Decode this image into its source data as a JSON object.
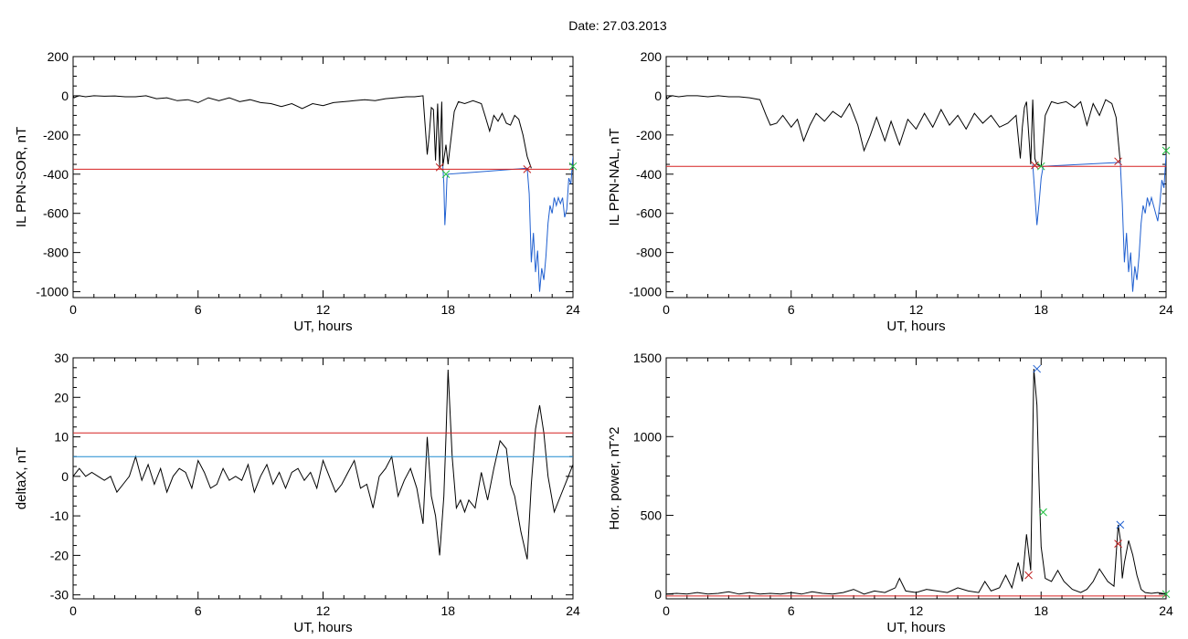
{
  "figure": {
    "title": "Date:  27.03.2013"
  },
  "chart_data": [
    {
      "id": "p1",
      "type": "line",
      "xlabel": "UT, hours",
      "ylabel": "IL PPN-SOR, nT",
      "xlim": [
        0,
        24
      ],
      "ylim": [
        -1030,
        200
      ],
      "xticks": [
        0,
        6,
        12,
        18,
        24
      ],
      "yticks": [
        200,
        0,
        -200,
        -400,
        -600,
        -800,
        -1000
      ],
      "grid": false,
      "series": [
        {
          "color": "#000000",
          "x": [
            0,
            0.05,
            0.15,
            0.3,
            0.6,
            1,
            1.5,
            2,
            2.5,
            3,
            3.5,
            4,
            4.5,
            5,
            5.5,
            6,
            6.5,
            7,
            7.5,
            8,
            8.5,
            9,
            9.5,
            10,
            10.5,
            11,
            11.5,
            12,
            12.5,
            13,
            13.5,
            14,
            14.5,
            15,
            15.5,
            16,
            16.4,
            16.8,
            16.9,
            17.0,
            17.1,
            17.2,
            17.3,
            17.4,
            17.5,
            17.6,
            17.7,
            17.75,
            17.9,
            18.0,
            18.1,
            18.3,
            18.5,
            18.8,
            19.2,
            19.6,
            19.8,
            20.0,
            20.2,
            20.4,
            20.6,
            20.8,
            21.0,
            21.2,
            21.4,
            21.6,
            21.8,
            22.0
          ],
          "y": [
            0,
            -10,
            -5,
            0,
            -5,
            0,
            -2,
            -1,
            -5,
            -5,
            0,
            -15,
            -10,
            -25,
            -20,
            -35,
            -10,
            -25,
            -10,
            -30,
            -20,
            -35,
            -40,
            -55,
            -40,
            -65,
            -40,
            -50,
            -35,
            -30,
            -25,
            -20,
            -25,
            -15,
            -10,
            -5,
            -5,
            0,
            -150,
            -300,
            -200,
            -60,
            -70,
            -330,
            -40,
            -360,
            -30,
            -360,
            -250,
            -350,
            -260,
            -80,
            -30,
            -40,
            -25,
            -40,
            -110,
            -180,
            -100,
            -130,
            -90,
            -140,
            -150,
            -100,
            -120,
            -200,
            -310,
            -370
          ]
        },
        {
          "color": "#1f5fd0",
          "x": [
            17.75,
            17.8,
            17.85,
            17.9,
            17.95,
            18.0,
            21.8,
            21.9,
            22.0,
            22.1,
            22.2,
            22.3,
            22.4,
            22.5,
            22.6,
            22.7,
            22.8,
            22.9,
            23.0,
            23.1,
            23.2,
            23.3,
            23.4,
            23.5,
            23.6,
            23.7,
            23.8,
            23.9,
            24.0
          ],
          "y": [
            -360,
            -450,
            -660,
            -560,
            -420,
            -400,
            -370,
            -500,
            -850,
            -700,
            -900,
            -790,
            -1000,
            -880,
            -940,
            -820,
            -650,
            -560,
            -600,
            -520,
            -560,
            -520,
            -550,
            -520,
            -620,
            -580,
            -420,
            -450,
            -310
          ]
        },
        {
          "color": "#d62020",
          "x": [
            0,
            24
          ],
          "y": [
            -375,
            -375
          ]
        }
      ],
      "markers": [
        {
          "x": [
            17.6,
            21.8
          ],
          "y": [
            -365,
            -375
          ],
          "color": "#c02020"
        },
        {
          "x": [
            17.9,
            24.0
          ],
          "y": [
            -400,
            -360
          ],
          "color": "#20c040"
        }
      ]
    },
    {
      "id": "p2",
      "type": "line",
      "xlabel": "UT, hours",
      "ylabel": "IL PPN-NAL, nT",
      "xlim": [
        0,
        24
      ],
      "ylim": [
        -1030,
        200
      ],
      "xticks": [
        0,
        6,
        12,
        18,
        24
      ],
      "yticks": [
        200,
        0,
        -200,
        -400,
        -600,
        -800,
        -1000
      ],
      "grid": false,
      "series": [
        {
          "color": "#000000",
          "x": [
            0,
            0.05,
            0.15,
            0.3,
            0.6,
            1,
            1.5,
            2,
            2.5,
            3,
            3.5,
            4,
            4.5,
            4.8,
            5.0,
            5.3,
            5.6,
            6.0,
            6.3,
            6.6,
            6.9,
            7.2,
            7.6,
            8.0,
            8.4,
            8.8,
            9.2,
            9.5,
            9.8,
            10.1,
            10.5,
            10.8,
            11.2,
            11.6,
            12.0,
            12.4,
            12.8,
            13.2,
            13.6,
            14.0,
            14.4,
            14.8,
            15.2,
            15.6,
            16.0,
            16.4,
            16.8,
            17.0,
            17.1,
            17.2,
            17.3,
            17.5,
            17.6,
            17.7,
            17.8,
            18.0,
            18.2,
            18.5,
            18.8,
            19.2,
            19.6,
            19.9,
            20.2,
            20.5,
            20.8,
            21.1,
            21.4,
            21.6,
            21.8
          ],
          "y": [
            0,
            -15,
            -5,
            0,
            -5,
            0,
            0,
            -5,
            0,
            -5,
            -5,
            -10,
            -20,
            -100,
            -150,
            -140,
            -100,
            -160,
            -120,
            -230,
            -150,
            -90,
            -130,
            -80,
            -110,
            -40,
            -150,
            -280,
            -200,
            -110,
            -230,
            -130,
            -250,
            -120,
            -170,
            -90,
            -160,
            -70,
            -150,
            -100,
            -170,
            -90,
            -140,
            -100,
            -160,
            -140,
            -100,
            -320,
            -160,
            -60,
            -30,
            -350,
            -20,
            -320,
            -350,
            -360,
            -100,
            -30,
            -40,
            -30,
            -60,
            -30,
            -150,
            -40,
            -100,
            -20,
            -40,
            -110,
            -340
          ]
        },
        {
          "color": "#1f5fd0",
          "x": [
            17.6,
            17.7,
            17.8,
            17.9,
            18.0,
            18.1,
            21.8,
            21.9,
            22.0,
            22.1,
            22.2,
            22.3,
            22.4,
            22.5,
            22.6,
            22.7,
            22.8,
            22.9,
            23.0,
            23.1,
            23.2,
            23.3,
            23.4,
            23.5,
            23.6,
            23.7,
            23.8,
            23.9,
            24.0
          ],
          "y": [
            -350,
            -500,
            -660,
            -550,
            -420,
            -360,
            -340,
            -550,
            -850,
            -700,
            -900,
            -800,
            -1000,
            -870,
            -940,
            -820,
            -650,
            -560,
            -600,
            -520,
            -560,
            -520,
            -560,
            -600,
            -640,
            -550,
            -430,
            -470,
            -300
          ]
        },
        {
          "color": "#d62020",
          "x": [
            0,
            24
          ],
          "y": [
            -360,
            -360
          ]
        }
      ],
      "markers": [
        {
          "x": [
            17.7,
            21.7
          ],
          "y": [
            -355,
            -335
          ],
          "color": "#c02020"
        },
        {
          "x": [
            18.0,
            24.0
          ],
          "y": [
            -360,
            -280
          ],
          "color": "#20c040"
        }
      ]
    },
    {
      "id": "p3",
      "type": "line",
      "xlabel": "UT, hours",
      "ylabel": "deltaX, nT",
      "xlim": [
        0,
        24
      ],
      "ylim": [
        -31,
        30
      ],
      "xticks": [
        0,
        6,
        12,
        18,
        24
      ],
      "yticks": [
        30,
        20,
        10,
        0,
        -10,
        -20,
        -30
      ],
      "grid": false,
      "series": [
        {
          "color": "#000000",
          "x": [
            0,
            0.3,
            0.6,
            0.9,
            1.2,
            1.5,
            1.8,
            2.1,
            2.4,
            2.7,
            3.0,
            3.3,
            3.6,
            3.9,
            4.2,
            4.5,
            4.8,
            5.1,
            5.4,
            5.7,
            6.0,
            6.3,
            6.6,
            6.9,
            7.2,
            7.5,
            7.8,
            8.1,
            8.4,
            8.7,
            9.0,
            9.3,
            9.6,
            9.9,
            10.2,
            10.5,
            10.8,
            11.1,
            11.4,
            11.7,
            12.0,
            12.3,
            12.6,
            12.9,
            13.2,
            13.5,
            13.8,
            14.1,
            14.4,
            14.7,
            15.0,
            15.3,
            15.6,
            15.9,
            16.2,
            16.5,
            16.8,
            17.0,
            17.2,
            17.4,
            17.6,
            17.8,
            17.9,
            18.0,
            18.2,
            18.4,
            18.6,
            18.8,
            19.0,
            19.3,
            19.6,
            19.9,
            20.2,
            20.5,
            20.8,
            21.0,
            21.2,
            21.5,
            21.8,
            22.0,
            22.2,
            22.4,
            22.6,
            22.8,
            23.1,
            23.4,
            23.7,
            24.0
          ],
          "y": [
            0,
            2,
            0,
            1,
            0,
            -1,
            0,
            -4,
            -2,
            0,
            5,
            -1,
            3,
            -2,
            2,
            -4,
            0,
            2,
            1,
            -3,
            4,
            1,
            -3,
            -2,
            2,
            -1,
            0,
            -1,
            3,
            -4,
            0,
            3,
            -2,
            1,
            -3,
            1,
            2,
            -1,
            1,
            -3,
            4,
            0,
            -4,
            -2,
            1,
            4,
            -3,
            -2,
            -8,
            0,
            2,
            5,
            -5,
            -1,
            2,
            -3,
            -12,
            10,
            -5,
            -10,
            -20,
            -5,
            10,
            27,
            5,
            -8,
            -6,
            -9,
            -6,
            -8,
            1,
            -6,
            2,
            9,
            7,
            -2,
            -5,
            -14,
            -21,
            -2,
            12,
            18,
            11,
            0,
            -9,
            -5,
            -1,
            3
          ]
        },
        {
          "color": "#d62020",
          "x": [
            0,
            24
          ],
          "y": [
            11,
            11
          ]
        },
        {
          "color": "#1f8ad0",
          "x": [
            0,
            24
          ],
          "y": [
            5,
            5
          ]
        }
      ],
      "markers": []
    },
    {
      "id": "p4",
      "type": "line",
      "xlabel": "UT, hours",
      "ylabel": "Hor. power, nT^2",
      "xlim": [
        0,
        24
      ],
      "ylim": [
        -30,
        1500
      ],
      "xticks": [
        0,
        6,
        12,
        18,
        24
      ],
      "yticks": [
        1500,
        1000,
        500,
        0
      ],
      "grid": false,
      "series": [
        {
          "color": "#000000",
          "x": [
            0,
            0.5,
            1,
            1.5,
            2,
            2.5,
            3,
            3.5,
            4,
            4.5,
            5,
            5.5,
            6,
            6.5,
            7,
            7.5,
            8,
            8.5,
            9,
            9.5,
            10,
            10.5,
            11,
            11.2,
            11.5,
            12,
            12.5,
            13,
            13.5,
            14,
            14.5,
            15,
            15.3,
            15.6,
            16,
            16.3,
            16.6,
            16.9,
            17.1,
            17.3,
            17.5,
            17.65,
            17.8,
            17.9,
            18.0,
            18.2,
            18.5,
            18.8,
            19.1,
            19.5,
            19.9,
            20.2,
            20.5,
            20.8,
            21.2,
            21.5,
            21.7,
            21.8,
            21.9,
            22.0,
            22.2,
            22.4,
            22.6,
            22.8,
            23.0,
            23.3,
            23.6,
            24.0
          ],
          "y": [
            0,
            5,
            0,
            10,
            0,
            5,
            15,
            0,
            10,
            0,
            5,
            0,
            10,
            0,
            15,
            5,
            0,
            10,
            30,
            0,
            20,
            10,
            40,
            100,
            20,
            10,
            30,
            20,
            10,
            40,
            20,
            10,
            80,
            20,
            40,
            120,
            40,
            200,
            80,
            380,
            150,
            1430,
            1200,
            700,
            300,
            100,
            80,
            150,
            80,
            30,
            10,
            30,
            80,
            160,
            80,
            50,
            440,
            350,
            100,
            200,
            340,
            250,
            120,
            30,
            10,
            5,
            10,
            0
          ]
        },
        {
          "color": "#d62020",
          "x": [
            0,
            24
          ],
          "y": [
            -12,
            -12
          ]
        }
      ],
      "markers": [
        {
          "x": [
            17.8,
            21.8
          ],
          "y": [
            1430,
            440
          ],
          "color": "#2060d0"
        },
        {
          "x": [
            18.1,
            24.0
          ],
          "y": [
            520,
            0
          ],
          "color": "#20c040"
        },
        {
          "x": [
            17.4,
            21.7
          ],
          "y": [
            120,
            320
          ],
          "color": "#c02020"
        }
      ]
    }
  ]
}
